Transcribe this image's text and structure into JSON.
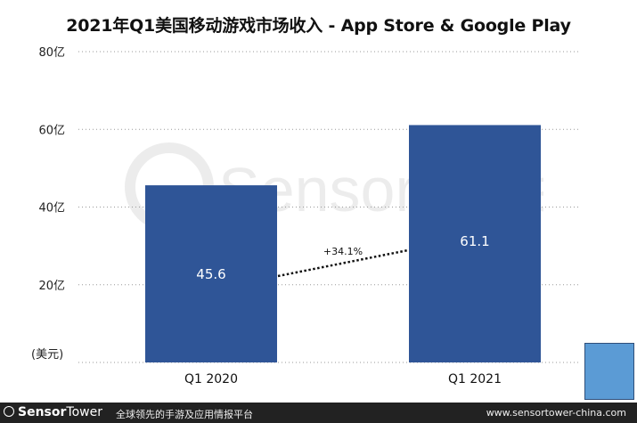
{
  "header": {
    "title": "2021年Q1美国移动游戏市场收入 - App Store & Google Play"
  },
  "watermark": {
    "text": "SensorTower"
  },
  "chart_data": {
    "type": "bar",
    "title": "2021年Q1美国移动游戏市场收入 - App Store & Google Play",
    "ylabel": "(美元)",
    "yticks": [
      "20亿",
      "40亿",
      "60亿",
      "80亿"
    ],
    "ytick_values": [
      20,
      40,
      60,
      80
    ],
    "ylim": [
      0,
      80
    ],
    "categories": [
      "Q1  2020",
      "Q1 2021"
    ],
    "values": [
      45.6,
      61.1
    ],
    "value_labels": [
      "45.6",
      "61.1"
    ],
    "growth_label": "+34.1%",
    "bar_color": "#2f5597",
    "grid": true
  },
  "footer": {
    "brand_bold": "Sensor",
    "brand_rest": "Tower",
    "tagline": "全球领先的手游及应用情报平台",
    "website": "www.sensortower-china.com"
  }
}
